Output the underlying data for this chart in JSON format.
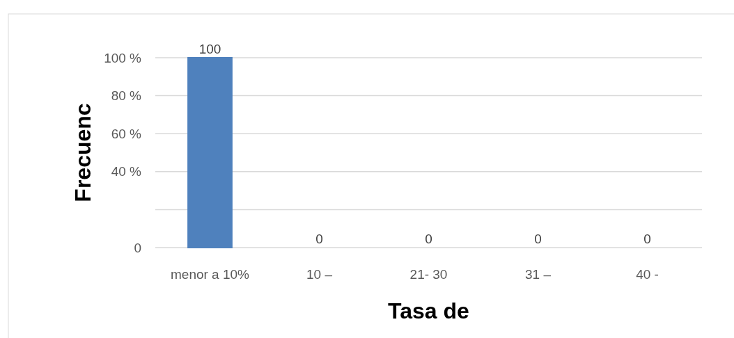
{
  "chart_data": {
    "type": "bar",
    "categories": [
      "menor a 10%",
      "10 –",
      "21- 30",
      "31 –",
      "40 -"
    ],
    "values": [
      100,
      0,
      0,
      0,
      0
    ],
    "colors": [
      "#4f81bd",
      "#604a7b",
      "#953735",
      "#0089bd",
      "#00843c"
    ],
    "ylim": [
      0,
      100
    ],
    "yticks": [
      0,
      {
        "value": 20,
        "label": null
      },
      {
        "value": 40,
        "label": "40 %"
      },
      {
        "value": 60,
        "label": "60 %"
      },
      {
        "value": 80,
        "label": "80 %"
      },
      {
        "value": 100,
        "label": "100 %"
      }
    ],
    "grid": "y",
    "data_labels": true,
    "xlabel": "Tasa de",
    "ylabel": "Frecuenc"
  }
}
